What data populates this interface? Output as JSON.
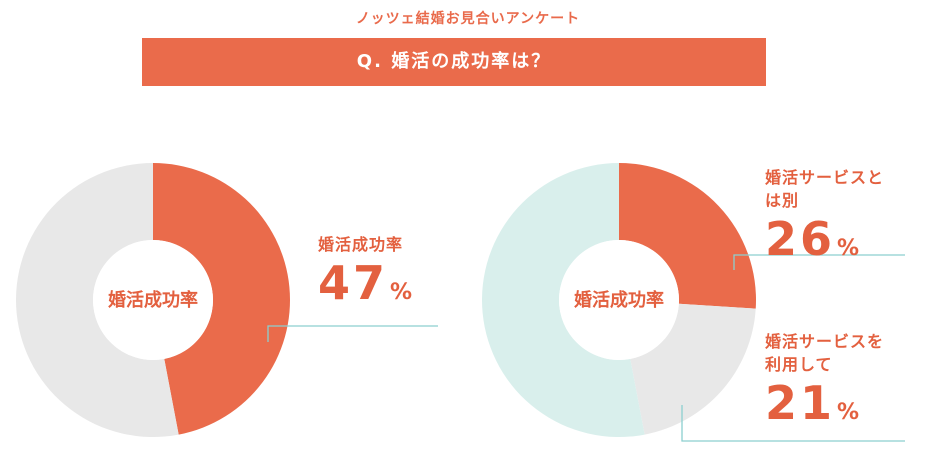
{
  "header": {
    "survey": "ノッツェ結婚お見合いアンケート",
    "question": "Q. 婚活の成功率は？"
  },
  "chart_data": [
    {
      "type": "donut",
      "center_label": "婚活成功率",
      "categories": [
        "婚活成功率",
        null
      ],
      "values": [
        47,
        53
      ],
      "unit": "%",
      "colors": [
        "#ea6b4b",
        "#e8e8e8"
      ]
    },
    {
      "type": "donut",
      "center_label": "婚活成功率",
      "categories": [
        "婚活サービスとは別",
        "婚活サービスを利用して",
        null
      ],
      "values": [
        26,
        21,
        53
      ],
      "unit": "%",
      "colors": [
        "#ea6b4b",
        "#e8e8e8",
        "#d9efec"
      ]
    }
  ]
}
